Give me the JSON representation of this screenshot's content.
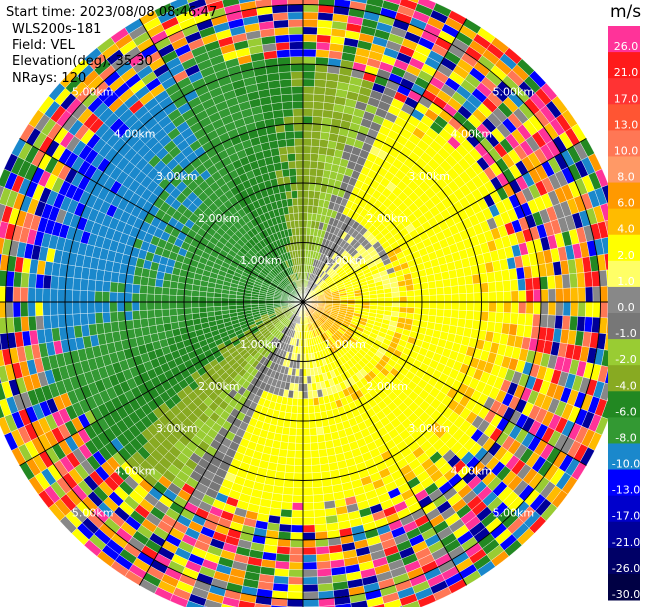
{
  "header": {
    "start_time": "Start time: 2023/08/08 08:46:47",
    "instrument": "WLS200s-181",
    "field": "Field: VEL",
    "elevation": "Elevation(deg): 35.30",
    "nrays": "NRays: 120"
  },
  "chart_data": {
    "type": "heatmap",
    "projection": "polar-ppi",
    "field": "VEL",
    "nrays": 120,
    "range_ring_labels": [
      "1.00km",
      "2.00km",
      "3.00km",
      "4.00km",
      "5.00km"
    ],
    "range_rings_km": [
      1,
      2,
      3,
      4,
      5
    ],
    "max_range_km": 5.5,
    "colorbar": {
      "unit": "m/s",
      "tick_labels": [
        "26.0",
        "21.0",
        "17.0",
        "13.0",
        "10.0",
        "8.0",
        "6.0",
        "4.0",
        "2.0",
        "1.0",
        "0.0",
        "-1.0",
        "-2.0",
        "-4.0",
        "-6.0",
        "-8.0",
        "-10.0",
        "-13.0",
        "-17.0",
        "-21.0",
        "-26.0",
        "-30.0"
      ],
      "colors": [
        "#ff3399",
        "#ff1a1a",
        "#ff3333",
        "#ff5533",
        "#ff7755",
        "#ff9966",
        "#ff9900",
        "#ffbb00",
        "#ffff00",
        "#ffff66",
        "#888888",
        "#777777",
        "#99cc33",
        "#88aa22",
        "#228822",
        "#339933",
        "#1a88cc",
        "#0000ff",
        "#0000cc",
        "#000099",
        "#000066",
        "#000044"
      ]
    },
    "wind_pattern": {
      "toward_sector_deg": 115,
      "away_sector_deg": 295,
      "near_range_max_ms": 7,
      "far_range_max_ms": -3
    }
  }
}
